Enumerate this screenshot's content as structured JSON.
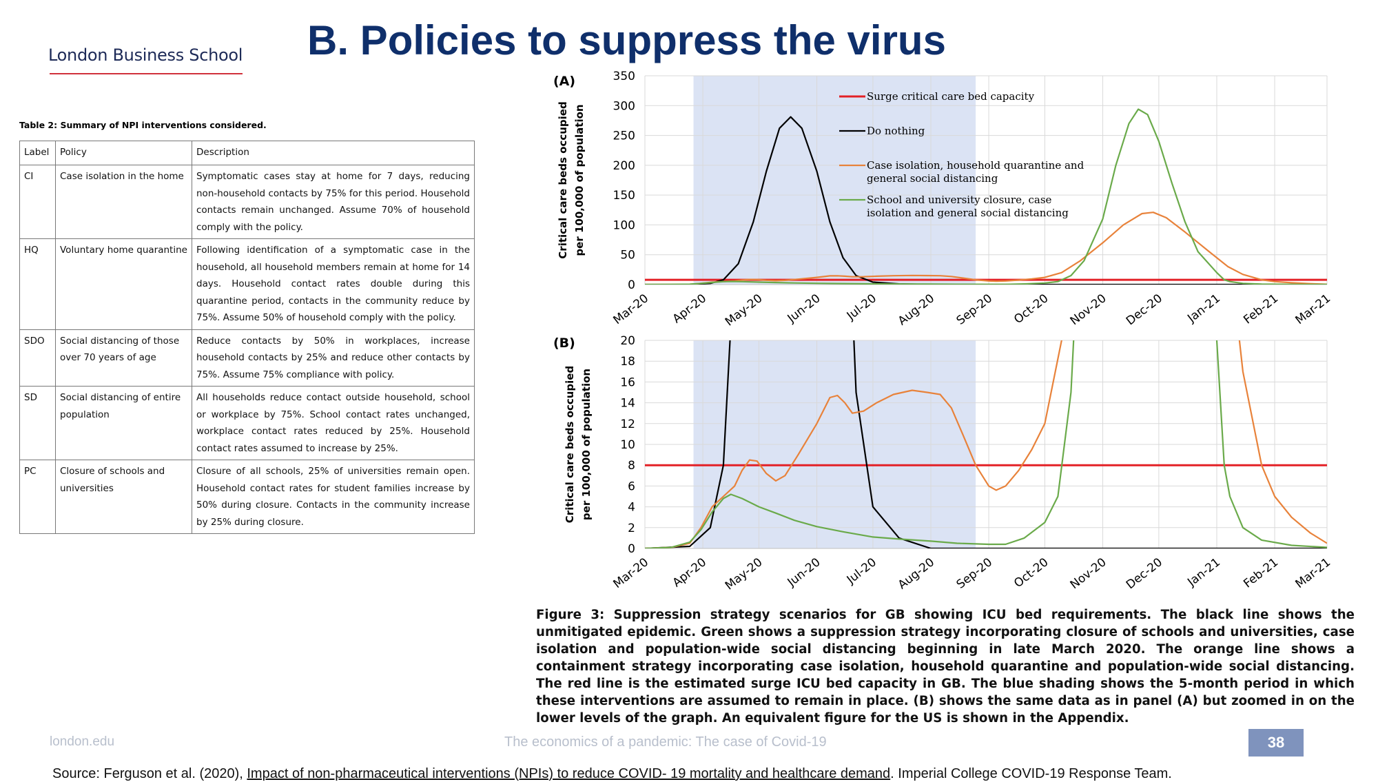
{
  "header": {
    "logo_text": "London Business School",
    "title": "B. Policies to suppress the virus"
  },
  "table": {
    "caption": "Table 2: Summary of NPI interventions considered.",
    "headers": [
      "Label",
      "Policy",
      "Description"
    ],
    "rows": [
      {
        "label": "CI",
        "policy": "Case isolation in the home",
        "description": "Symptomatic cases stay at home for 7 days, reducing non-household contacts by 75% for this period. Household contacts remain unchanged. Assume 70% of household comply with the policy."
      },
      {
        "label": "HQ",
        "policy": "Voluntary home quarantine",
        "description": "Following identification of a symptomatic case in the household, all household members remain at home for 14 days. Household contact rates double during this quarantine period, contacts in the community reduce by 75%. Assume 50% of household comply with the policy."
      },
      {
        "label": "SDO",
        "policy": "Social distancing of those over 70 years of age",
        "description": "Reduce contacts by 50% in workplaces, increase household contacts by 25% and reduce other contacts by 75%. Assume 75% compliance with policy."
      },
      {
        "label": "SD",
        "policy": "Social distancing of entire population",
        "description": "All households reduce contact outside household, school or workplace by 75%. School contact rates unchanged, workplace contact rates reduced by 25%. Household contact rates assumed to increase by 25%."
      },
      {
        "label": "PC",
        "policy": "Closure of schools and universities",
        "description": "Closure of all schools, 25% of universities remain open. Household contact rates for student families increase by 50% during closure. Contacts in the community increase by 25% during closure."
      }
    ]
  },
  "figure_caption": "Figure 3: Suppression strategy scenarios for GB showing ICU bed requirements. The black line shows the unmitigated epidemic. Green shows a suppression strategy incorporating closure of schools and universities, case isolation and population-wide social distancing beginning in late March 2020. The orange line shows a containment strategy incorporating case isolation, household quarantine and population-wide social distancing. The red line is the estimated surge ICU bed capacity in GB. The blue shading shows the 5-month period in which these interventions are assumed to remain in place. (B) shows the same data as in panel (A) but zoomed in on the lower levels of the graph. An equivalent figure for the US is shown in the Appendix.",
  "footer": {
    "left": "london.edu",
    "center": "The economics of a pandemic: The case of Covid-19",
    "page": "38"
  },
  "source": {
    "prefix": "Source: Ferguson et al. (2020), ",
    "link": "Impact of non-pharmaceutical interventions (NPIs) to reduce COVID- 19 mortality and healthcare demand",
    "suffix": ". Imperial College COVID-19 Response Team."
  },
  "colors": {
    "capacity": "#e32026",
    "do_nothing": "#000000",
    "containment": "#e8823a",
    "suppression": "#6aaa4a",
    "shading": "#dbe3f4",
    "title": "#0f2f6b"
  },
  "chart_data": [
    {
      "panel": "(A)",
      "type": "line",
      "ylabel": "Critical care beds occupied per 100,000 of population",
      "ylim": [
        0,
        350
      ],
      "yticks": [
        0,
        50,
        100,
        150,
        200,
        250,
        300,
        350
      ],
      "x_ticks": [
        "Mar-20",
        "Apr-20",
        "May-20",
        "Jun-20",
        "Jul-20",
        "Aug-20",
        "Sep-20",
        "Oct-20",
        "Nov-20",
        "Dec-20",
        "Jan-21",
        "Feb-21",
        "Mar-21"
      ],
      "shaded_period": [
        "2020-03-27",
        "2020-08-25"
      ],
      "grid": true,
      "legend_position": "top-center",
      "series": [
        {
          "name": "Surge critical care bed capacity",
          "key": "capacity",
          "points": [
            [
              "2020-03-01",
              8
            ],
            [
              "2021-03-01",
              8
            ]
          ]
        },
        {
          "name": "Do nothing",
          "key": "do_nothing",
          "points": [
            [
              "2020-03-01",
              0
            ],
            [
              "2020-03-25",
              0.2
            ],
            [
              "2020-04-05",
              2
            ],
            [
              "2020-04-12",
              8
            ],
            [
              "2020-04-20",
              35
            ],
            [
              "2020-04-28",
              105
            ],
            [
              "2020-05-05",
              190
            ],
            [
              "2020-05-12",
              262
            ],
            [
              "2020-05-18",
              281
            ],
            [
              "2020-05-24",
              262
            ],
            [
              "2020-06-01",
              190
            ],
            [
              "2020-06-08",
              105
            ],
            [
              "2020-06-15",
              45
            ],
            [
              "2020-06-22",
              15
            ],
            [
              "2020-07-01",
              4
            ],
            [
              "2020-07-15",
              1
            ],
            [
              "2020-08-01",
              0
            ],
            [
              "2021-03-01",
              0
            ]
          ]
        },
        {
          "name": "Case isolation, household quarantine and general social distancing",
          "key": "containment",
          "points": [
            [
              "2020-03-01",
              0
            ],
            [
              "2020-03-15",
              0.1
            ],
            [
              "2020-03-25",
              0.5
            ],
            [
              "2020-03-31",
              2
            ],
            [
              "2020-04-06",
              4
            ],
            [
              "2020-04-12",
              5
            ],
            [
              "2020-04-18",
              6
            ],
            [
              "2020-04-22",
              7.5
            ],
            [
              "2020-04-26",
              8.5
            ],
            [
              "2020-04-30",
              8.4
            ],
            [
              "2020-05-05",
              7.2
            ],
            [
              "2020-05-10",
              6.5
            ],
            [
              "2020-05-15",
              7
            ],
            [
              "2020-05-22",
              9
            ],
            [
              "2020-06-01",
              12
            ],
            [
              "2020-06-08",
              14.5
            ],
            [
              "2020-06-12",
              14.7
            ],
            [
              "2020-06-16",
              14
            ],
            [
              "2020-06-20",
              13
            ],
            [
              "2020-06-26",
              13.2
            ],
            [
              "2020-07-03",
              14
            ],
            [
              "2020-07-12",
              14.8
            ],
            [
              "2020-07-22",
              15.2
            ],
            [
              "2020-07-30",
              15
            ],
            [
              "2020-08-06",
              14.8
            ],
            [
              "2020-08-12",
              13.5
            ],
            [
              "2020-08-18",
              11
            ],
            [
              "2020-08-25",
              8
            ],
            [
              "2020-09-01",
              6
            ],
            [
              "2020-09-05",
              5.6
            ],
            [
              "2020-09-10",
              6
            ],
            [
              "2020-09-17",
              7.5
            ],
            [
              "2020-09-24",
              9.5
            ],
            [
              "2020-10-01",
              12
            ],
            [
              "2020-10-10",
              20
            ],
            [
              "2020-10-20",
              40
            ],
            [
              "2020-11-01",
              70
            ],
            [
              "2020-11-12",
              100
            ],
            [
              "2020-11-22",
              119
            ],
            [
              "2020-11-28",
              121
            ],
            [
              "2020-12-05",
              112
            ],
            [
              "2020-12-15",
              88
            ],
            [
              "2020-12-28",
              55
            ],
            [
              "2021-01-07",
              30
            ],
            [
              "2021-01-15",
              17
            ],
            [
              "2021-01-25",
              8
            ],
            [
              "2021-02-01",
              5
            ],
            [
              "2021-02-10",
              3
            ],
            [
              "2021-02-20",
              1.5
            ],
            [
              "2021-03-01",
              0.5
            ]
          ]
        },
        {
          "name": "School and university closure, case isolation and general social distancing",
          "key": "suppression",
          "points": [
            [
              "2020-03-01",
              0
            ],
            [
              "2020-03-15",
              0.1
            ],
            [
              "2020-03-25",
              0.6
            ],
            [
              "2020-03-31",
              1.8
            ],
            [
              "2020-04-06",
              3.5
            ],
            [
              "2020-04-12",
              4.8
            ],
            [
              "2020-04-16",
              5.2
            ],
            [
              "2020-04-22",
              4.8
            ],
            [
              "2020-05-01",
              4
            ],
            [
              "2020-05-10",
              3.4
            ],
            [
              "2020-05-20",
              2.7
            ],
            [
              "2020-06-01",
              2.1
            ],
            [
              "2020-06-15",
              1.6
            ],
            [
              "2020-07-01",
              1.1
            ],
            [
              "2020-07-15",
              0.9
            ],
            [
              "2020-08-01",
              0.7
            ],
            [
              "2020-08-15",
              0.5
            ],
            [
              "2020-09-01",
              0.4
            ],
            [
              "2020-09-10",
              0.4
            ],
            [
              "2020-09-20",
              1
            ],
            [
              "2020-10-01",
              2.5
            ],
            [
              "2020-10-08",
              5
            ],
            [
              "2020-10-15",
              15
            ],
            [
              "2020-10-22",
              40
            ],
            [
              "2020-11-01",
              110
            ],
            [
              "2020-11-08",
              200
            ],
            [
              "2020-11-15",
              270
            ],
            [
              "2020-11-20",
              294
            ],
            [
              "2020-11-25",
              285
            ],
            [
              "2020-12-01",
              240
            ],
            [
              "2020-12-08",
              170
            ],
            [
              "2020-12-15",
              105
            ],
            [
              "2020-12-22",
              55
            ],
            [
              "2021-01-01",
              20
            ],
            [
              "2021-01-05",
              8
            ],
            [
              "2021-01-08",
              5
            ],
            [
              "2021-01-15",
              2
            ],
            [
              "2021-01-25",
              0.8
            ],
            [
              "2021-02-10",
              0.3
            ],
            [
              "2021-03-01",
              0.1
            ]
          ]
        }
      ]
    },
    {
      "panel": "(B)",
      "type": "line",
      "ylabel": "Critical care beds occupied per 100,000 of population",
      "ylim": [
        0,
        20
      ],
      "yticks": [
        0,
        2,
        4,
        6,
        8,
        10,
        12,
        14,
        16,
        18,
        20
      ],
      "x_ticks": [
        "Mar-20",
        "Apr-20",
        "May-20",
        "Jun-20",
        "Jul-20",
        "Aug-20",
        "Sep-20",
        "Oct-20",
        "Nov-20",
        "Dec-20",
        "Jan-21",
        "Feb-21",
        "Mar-21"
      ],
      "shaded_period": [
        "2020-03-27",
        "2020-08-25"
      ],
      "grid": true,
      "note": "same series as panel (A), zoomed in on lower levels"
    }
  ]
}
